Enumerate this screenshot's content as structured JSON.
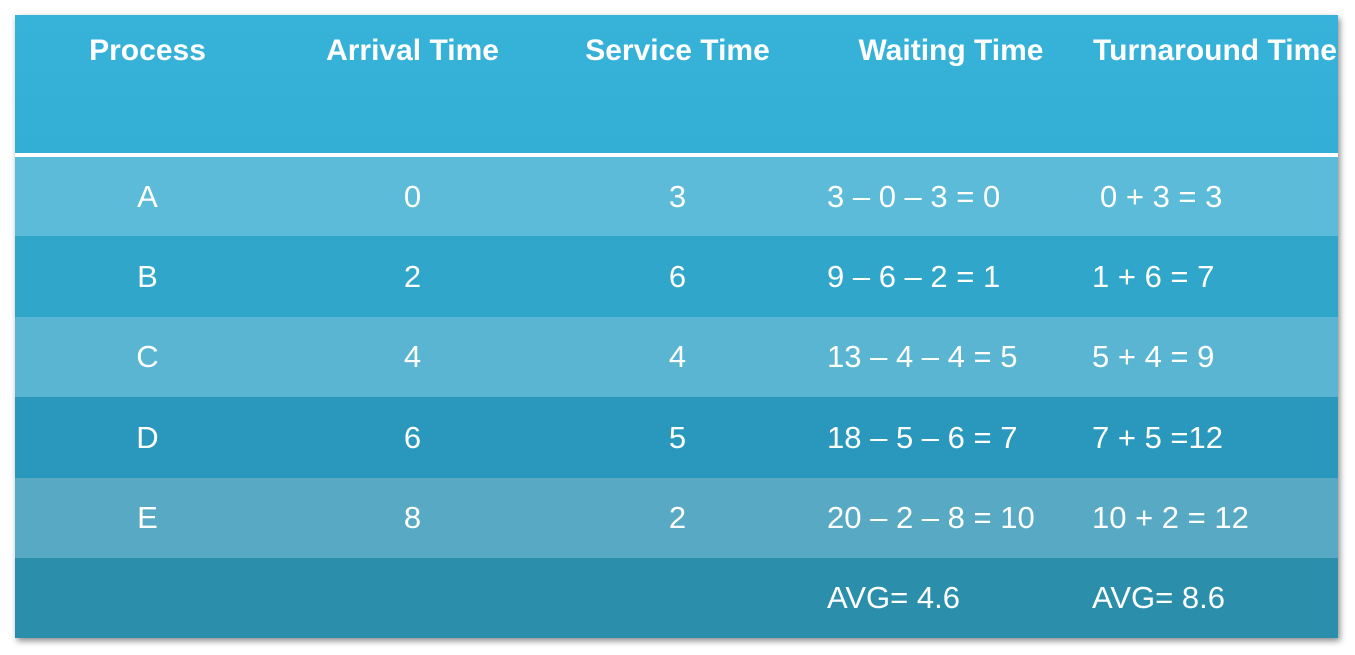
{
  "table": {
    "header": [
      "Process",
      "Arrival Time",
      "Service Time",
      "Waiting Time",
      "Turnaround Time"
    ],
    "rows": [
      [
        "A",
        "0",
        "3",
        "3 – 0 – 3 = 0",
        "0 + 3 = 3"
      ],
      [
        "B",
        "2",
        "6",
        "9 – 6 – 2 = 1",
        "1 + 6 = 7"
      ],
      [
        "C",
        "4",
        "4",
        "13 – 4 – 4 = 5",
        "5 + 4 = 9"
      ],
      [
        "D",
        "6",
        "5",
        "18 – 5 – 6 = 7",
        "7 + 5 =12"
      ],
      [
        "E",
        "8",
        "2",
        "20 – 2 – 8 = 10",
        "10 + 2 = 12"
      ]
    ],
    "average": {
      "waiting": "AVG= 4.6",
      "turnaround": "AVG= 8.6"
    }
  }
}
